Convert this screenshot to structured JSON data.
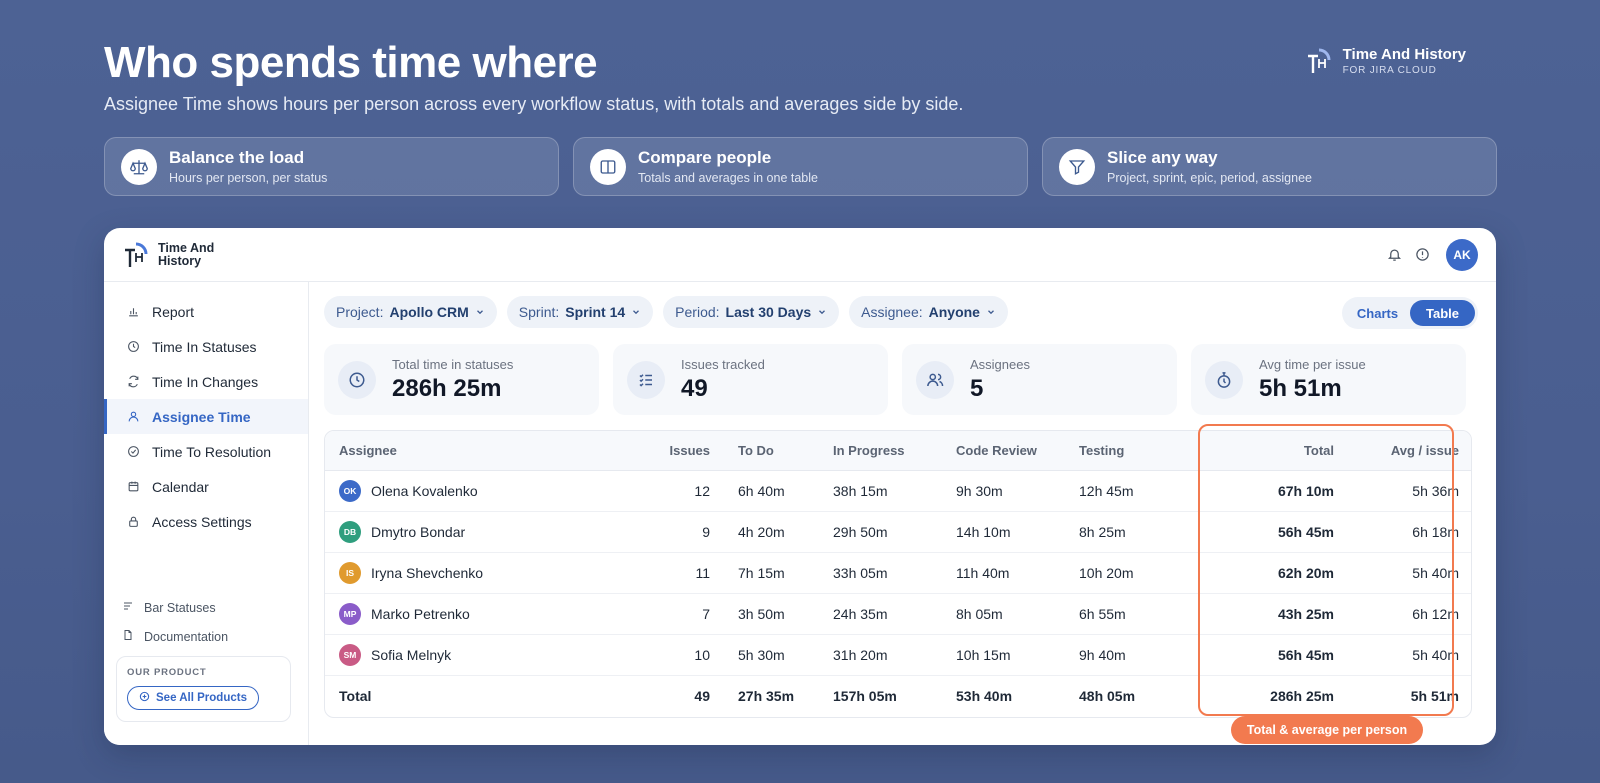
{
  "hero": {
    "title": "Who spends time where",
    "subtitle": "Assignee Time shows hours per person across every workflow status, with totals and averages side by side."
  },
  "brand": {
    "name": "Time And History",
    "tagline": "FOR JIRA CLOUD",
    "app_name": "Time And History"
  },
  "features": [
    {
      "icon": "scale-icon",
      "title": "Balance the load",
      "subtitle": "Hours per person, per status"
    },
    {
      "icon": "columns-icon",
      "title": "Compare people",
      "subtitle": "Totals and averages in one table"
    },
    {
      "icon": "filter-icon",
      "title": "Slice any way",
      "subtitle": "Project, sprint, epic, period, assignee"
    }
  ],
  "header": {
    "avatar_initials": "AK"
  },
  "sidebar": {
    "items": [
      {
        "label": "Report",
        "icon": "bar-chart-icon",
        "active": false
      },
      {
        "label": "Time In Statuses",
        "icon": "clock-icon",
        "active": false
      },
      {
        "label": "Time In Changes",
        "icon": "refresh-icon",
        "active": false
      },
      {
        "label": "Assignee Time",
        "icon": "user-icon",
        "active": true
      },
      {
        "label": "Time To Resolution",
        "icon": "check-circle-icon",
        "active": false
      },
      {
        "label": "Calendar",
        "icon": "calendar-icon",
        "active": false
      },
      {
        "label": "Access Settings",
        "icon": "lock-icon",
        "active": false
      }
    ],
    "links": [
      {
        "label": "Bar Statuses",
        "icon": "lines-icon"
      },
      {
        "label": "Documentation",
        "icon": "document-icon"
      }
    ],
    "product_label": "OUR PRODUCT",
    "product_button": "See All Products"
  },
  "filters": [
    {
      "key": "Project:",
      "value": "Apollo CRM"
    },
    {
      "key": "Sprint:",
      "value": "Sprint 14"
    },
    {
      "key": "Period:",
      "value": "Last 30 Days"
    },
    {
      "key": "Assignee:",
      "value": "Anyone"
    }
  ],
  "view_toggle": {
    "charts": "Charts",
    "table": "Table",
    "selected": "Table"
  },
  "stats": [
    {
      "label": "Total time in statuses",
      "value": "286h 25m",
      "icon": "clock-icon"
    },
    {
      "label": "Issues tracked",
      "value": "49",
      "icon": "checklist-icon"
    },
    {
      "label": "Assignees",
      "value": "5",
      "icon": "users-icon"
    },
    {
      "label": "Avg time per issue",
      "value": "5h 51m",
      "icon": "stopwatch-icon"
    }
  ],
  "table": {
    "headers": {
      "assignee": "Assignee",
      "issues": "Issues",
      "todo": "To Do",
      "progress": "In Progress",
      "review": "Code Review",
      "testing": "Testing",
      "total": "Total",
      "avg": "Avg / issue"
    },
    "rows": [
      {
        "initials": "OK",
        "color": "#3c6ac8",
        "name": "Olena Kovalenko",
        "issues": "12",
        "todo": "6h 40m",
        "progress": "38h 15m",
        "review": "9h 30m",
        "testing": "12h 45m",
        "total": "67h 10m",
        "avg": "5h 36m"
      },
      {
        "initials": "DB",
        "color": "#2f9e7e",
        "name": "Dmytro Bondar",
        "issues": "9",
        "todo": "4h 20m",
        "progress": "29h 50m",
        "review": "14h 10m",
        "testing": "8h 25m",
        "total": "56h 45m",
        "avg": "6h 18m"
      },
      {
        "initials": "IS",
        "color": "#e09a2e",
        "name": "Iryna Shevchenko",
        "issues": "11",
        "todo": "7h 15m",
        "progress": "33h 05m",
        "review": "11h 40m",
        "testing": "10h 20m",
        "total": "62h 20m",
        "avg": "5h 40m"
      },
      {
        "initials": "MP",
        "color": "#8a5cc9",
        "name": "Marko Petrenko",
        "issues": "7",
        "todo": "3h 50m",
        "progress": "24h 35m",
        "review": "8h 05m",
        "testing": "6h 55m",
        "total": "43h 25m",
        "avg": "6h 12m"
      },
      {
        "initials": "SM",
        "color": "#c95b85",
        "name": "Sofia Melnyk",
        "issues": "10",
        "todo": "5h 30m",
        "progress": "31h 20m",
        "review": "10h 15m",
        "testing": "9h 40m",
        "total": "56h 45m",
        "avg": "5h 40m"
      }
    ],
    "totals": {
      "label": "Total",
      "issues": "49",
      "todo": "27h 35m",
      "progress": "157h 05m",
      "review": "53h 40m",
      "testing": "48h 05m",
      "total": "286h 25m",
      "avg": "5h 51m"
    }
  },
  "callout": "Total & average per person"
}
